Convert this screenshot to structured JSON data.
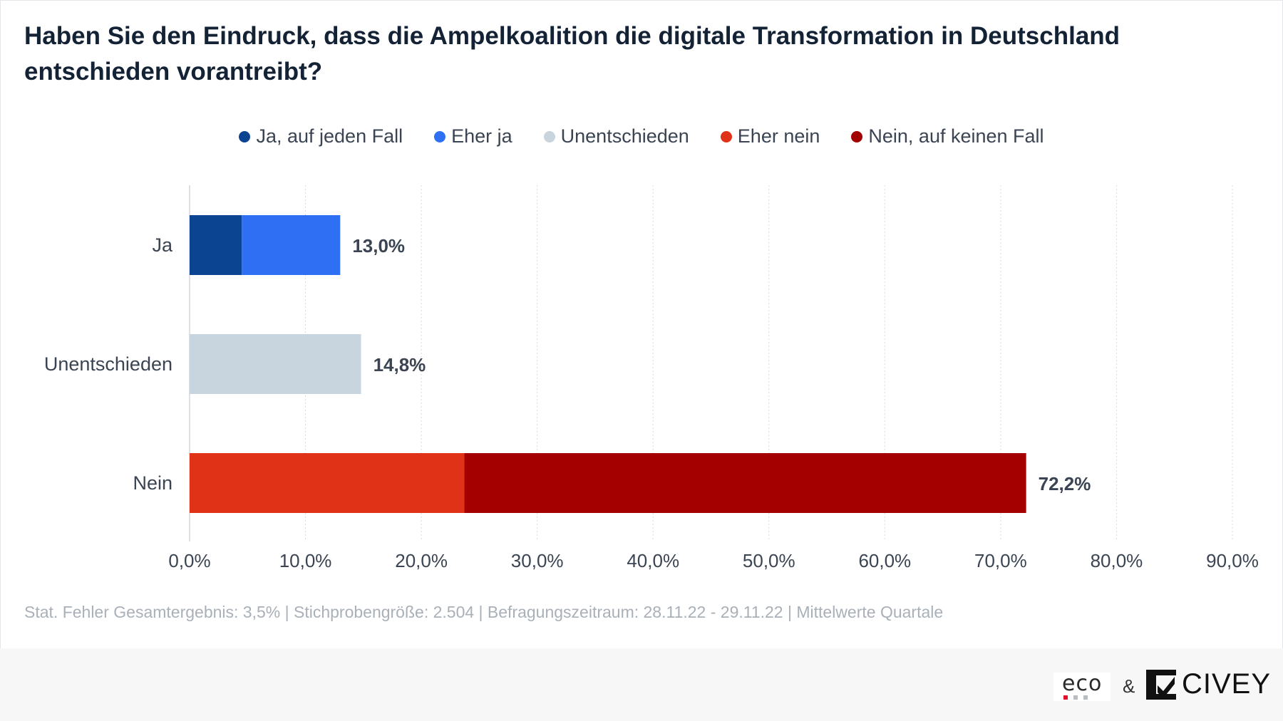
{
  "title": "Haben Sie den Eindruck, dass die Ampelkoalition die digitale Transformation in Deutschland entschieden vorantreibt?",
  "legend": [
    {
      "label": "Ja, auf jeden Fall",
      "color": "#0b4592"
    },
    {
      "label": "Eher ja",
      "color": "#2f6ff3"
    },
    {
      "label": "Unentschieden",
      "color": "#c8d4de"
    },
    {
      "label": "Eher nein",
      "color": "#e03217"
    },
    {
      "label": "Nein, auf keinen Fall",
      "color": "#a40000"
    }
  ],
  "chart_data": {
    "type": "bar",
    "orientation": "horizontal",
    "stacked": true,
    "categories": [
      "Ja",
      "Unentschieden",
      "Nein"
    ],
    "series": [
      {
        "name": "Ja, auf jeden Fall",
        "color": "#0b4592",
        "values": [
          4.5,
          0,
          0
        ]
      },
      {
        "name": "Eher ja",
        "color": "#2f6ff3",
        "values": [
          8.5,
          0,
          0
        ]
      },
      {
        "name": "Unentschieden",
        "color": "#c8d4de",
        "values": [
          0,
          14.8,
          0
        ]
      },
      {
        "name": "Eher nein",
        "color": "#e03217",
        "values": [
          0,
          0,
          23.7
        ]
      },
      {
        "name": "Nein, auf keinen Fall",
        "color": "#a40000",
        "values": [
          0,
          0,
          48.5
        ]
      }
    ],
    "totals": [
      "13,0%",
      "14,8%",
      "72,2%"
    ],
    "xlim": [
      0,
      90
    ],
    "xticks": [
      0,
      10,
      20,
      30,
      40,
      50,
      60,
      70,
      80,
      90
    ],
    "xtick_labels": [
      "0,0%",
      "10,0%",
      "20,0%",
      "30,0%",
      "40,0%",
      "50,0%",
      "60,0%",
      "70,0%",
      "80,0%",
      "90,0%"
    ],
    "grid": true,
    "legend_position": "top"
  },
  "footnote": "Stat. Fehler Gesamtergebnis: 3,5% | Stichprobengröße: 2.504 | Befragungszeitraum: 28.11.22 - 29.11.22 | Mittelwerte Quartale",
  "footer": {
    "eco_logo": "eco",
    "ampersand": "&",
    "civey_logo": "CIVEY"
  }
}
